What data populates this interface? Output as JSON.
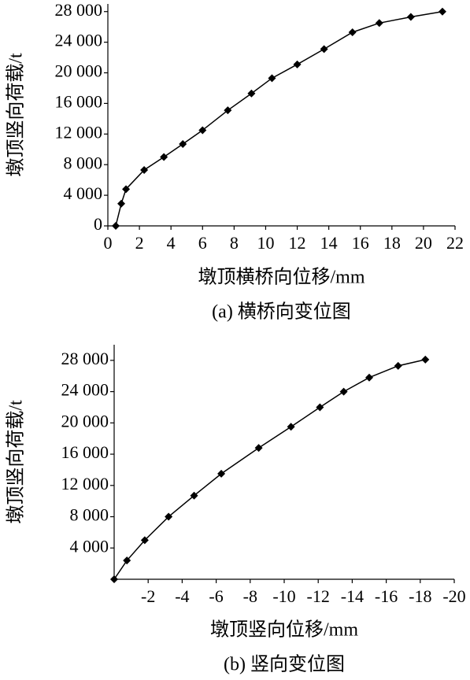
{
  "chart_data": [
    {
      "type": "line",
      "caption": "(a) 横桥向变位图",
      "x_label": "墩顶横桥向位移/mm",
      "y_label": "墩顶竖向荷载/t",
      "x": [
        0.5,
        0.85,
        1.15,
        2.3,
        3.55,
        4.75,
        6.0,
        7.6,
        9.1,
        10.4,
        12.0,
        13.7,
        15.5,
        17.2,
        19.2,
        21.2
      ],
      "values": [
        0,
        2900,
        4800,
        7300,
        9000,
        10700,
        12500,
        15100,
        17300,
        19300,
        21100,
        23100,
        25300,
        26500,
        27300,
        28000
      ],
      "color": "#000000",
      "xlim": [
        0,
        22
      ],
      "xticks": [
        0,
        2,
        4,
        6,
        8,
        10,
        12,
        14,
        16,
        18,
        20,
        22
      ],
      "ylim": [
        0,
        29000
      ],
      "yticks": [
        0,
        {
          "value": 4000,
          "label": "4 000"
        },
        {
          "value": 8000,
          "label": "8 000"
        },
        {
          "value": 12000,
          "label": "12 000"
        },
        {
          "value": 16000,
          "label": "16 000"
        },
        {
          "value": 20000,
          "label": "20 000"
        },
        {
          "value": 24000,
          "label": "24 000"
        },
        {
          "value": 28000,
          "label": "28 000"
        }
      ]
    },
    {
      "type": "line",
      "caption": "(b) 竖向变位图",
      "x_label": "墩顶竖向位移/mm",
      "y_label": "墩顶竖向荷载/t",
      "x": [
        0,
        -0.75,
        -1.8,
        -3.2,
        -4.7,
        -6.3,
        -8.5,
        -10.4,
        -12.1,
        -13.5,
        -15.0,
        -16.7,
        -18.3
      ],
      "values": [
        0,
        2400,
        5000,
        8000,
        10700,
        13500,
        16800,
        19500,
        22000,
        24000,
        25800,
        27300,
        28100
      ],
      "color": "#000000",
      "xlim": [
        0,
        -20
      ],
      "xticks": [
        -2,
        -4,
        -6,
        -8,
        -10,
        -12,
        -14,
        -16,
        -18,
        -20
      ],
      "ylim": [
        0,
        30000
      ],
      "yticks": [
        {
          "value": 4000,
          "label": "4 000"
        },
        {
          "value": 8000,
          "label": "8 000"
        },
        {
          "value": 12000,
          "label": "12 000"
        },
        {
          "value": 16000,
          "label": "16 000"
        },
        {
          "value": 20000,
          "label": "20 000"
        },
        {
          "value": 24000,
          "label": "24 000"
        },
        {
          "value": 28000,
          "label": "28 000"
        }
      ]
    }
  ]
}
